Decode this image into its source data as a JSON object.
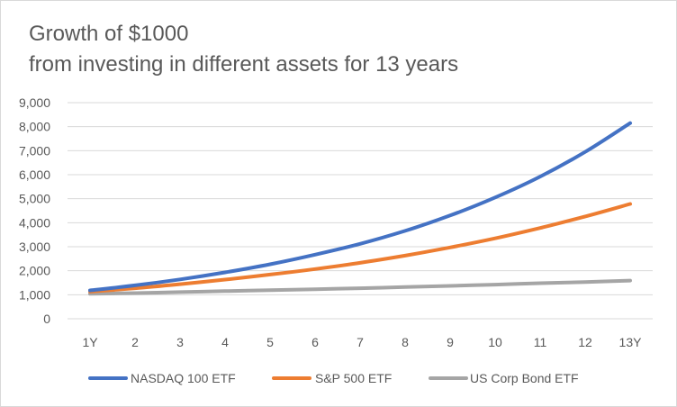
{
  "chart_data": {
    "type": "line",
    "title": "Growth of $1000",
    "subtitle": "from investing in different assets for 13 years",
    "xlabel": "",
    "ylabel": "",
    "categories": [
      "1Y",
      "2",
      "3",
      "4",
      "5",
      "6",
      "7",
      "8",
      "9",
      "10",
      "11",
      "12",
      "13Y"
    ],
    "ylim": [
      0,
      9000
    ],
    "yticks": [
      0,
      1000,
      2000,
      3000,
      4000,
      5000,
      6000,
      7000,
      8000,
      9000
    ],
    "ytick_labels": [
      "0",
      "1,000",
      "2,000",
      "3,000",
      "4,000",
      "5,000",
      "6,000",
      "7,000",
      "8,000",
      "9,000"
    ],
    "grid": true,
    "legend": "bottom",
    "series": [
      {
        "name": "NASDAQ 100 ETF",
        "color": "#4472c4",
        "values": [
          1180,
          1390,
          1640,
          1930,
          2270,
          2670,
          3120,
          3660,
          4300,
          5050,
          5920,
          6950,
          8150
        ]
      },
      {
        "name": "S&P 500 ETF",
        "color": "#ed7d31",
        "values": [
          1130,
          1270,
          1440,
          1630,
          1840,
          2070,
          2330,
          2630,
          2970,
          3350,
          3780,
          4260,
          4780
        ]
      },
      {
        "name": "US Corp Bond ETF",
        "color": "#a5a5a5",
        "values": [
          1040,
          1070,
          1110,
          1150,
          1190,
          1230,
          1270,
          1320,
          1370,
          1420,
          1480,
          1530,
          1590
        ]
      }
    ]
  }
}
